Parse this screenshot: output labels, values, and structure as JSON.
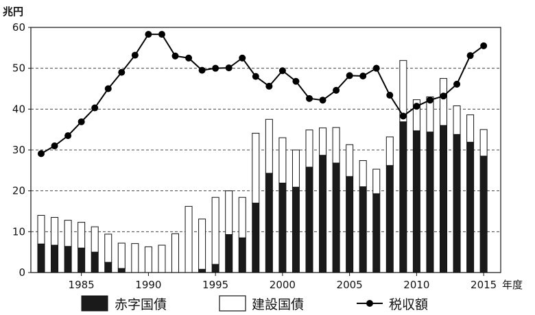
{
  "chart_data": {
    "type": "bar",
    "y_unit_label": "兆円",
    "x_unit_label": "年度",
    "ylim": [
      0,
      60
    ],
    "y_ticks": [
      "0",
      "10",
      "20",
      "30",
      "40",
      "50",
      "60"
    ],
    "x_tick_labels": [
      "1985",
      "1990",
      "1995",
      "2000",
      "2005",
      "2010",
      "2015"
    ],
    "grid": "horizontal dashed",
    "x": [
      1982,
      1983,
      1984,
      1985,
      1986,
      1987,
      1988,
      1989,
      1990,
      1991,
      1992,
      1993,
      1994,
      1995,
      1996,
      1997,
      1998,
      1999,
      2000,
      2001,
      2002,
      2003,
      2004,
      2005,
      2006,
      2007,
      2008,
      2009,
      2010,
      2011,
      2012,
      2013,
      2014,
      2015
    ],
    "series": [
      {
        "name": "赤字国債",
        "kind": "stacked-bar",
        "color": "#1a1a1a",
        "values": [
          7.0,
          6.7,
          6.4,
          6.0,
          5.0,
          2.5,
          1.0,
          0,
          0,
          0,
          0,
          0,
          0.8,
          2.0,
          9.3,
          8.5,
          17.0,
          24.3,
          21.9,
          20.9,
          25.8,
          28.7,
          26.8,
          23.5,
          21.0,
          19.3,
          26.2,
          36.9,
          34.7,
          34.4,
          36.0,
          33.8,
          31.9,
          28.5
        ]
      },
      {
        "name": "建設国債",
        "kind": "stacked-bar",
        "color": "#ffffff",
        "values": [
          7.0,
          6.8,
          6.4,
          6.3,
          6.2,
          6.9,
          6.2,
          7.1,
          6.3,
          6.7,
          9.5,
          16.2,
          12.3,
          16.4,
          10.7,
          9.9,
          17.1,
          13.2,
          11.1,
          9.1,
          9.1,
          6.7,
          8.7,
          7.8,
          6.4,
          6.0,
          7.0,
          15.0,
          7.6,
          8.6,
          11.5,
          7.0,
          6.7,
          6.5
        ]
      },
      {
        "name": "税収額",
        "kind": "line",
        "color": "#000000",
        "values": [
          29.1,
          31.0,
          33.5,
          36.9,
          40.3,
          45.0,
          49.0,
          53.2,
          58.3,
          58.3,
          53.0,
          52.5,
          49.5,
          50.0,
          50.1,
          52.5,
          48.0,
          45.6,
          49.4,
          46.8,
          42.6,
          42.2,
          44.6,
          48.2,
          48.1,
          50.0,
          43.4,
          38.3,
          40.7,
          42.2,
          43.2,
          46.1,
          53.1,
          55.5
        ]
      }
    ]
  },
  "colors": {
    "deficit_bond": "#1a1a1a",
    "construction_bond": "#ffffff",
    "tax_revenue": "#000000",
    "grid": "#444444"
  }
}
